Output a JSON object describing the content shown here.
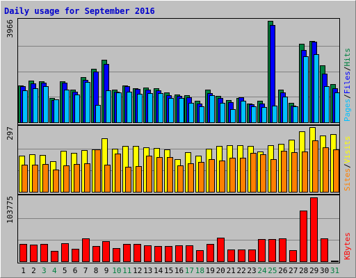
{
  "chart_data": {
    "title": "Daily usage for September 2016",
    "colors": {
      "frame_bg": "#C0C0C0",
      "title": "#0000CC",
      "hits": "#008040",
      "files": "#0000FF",
      "pages": "#00C0FF",
      "visits": "#FFFF00",
      "sites": "#FF8000",
      "kbytes": "#FF0000",
      "weekend_label": "#008040",
      "grid": "#808080",
      "text": "#000000"
    },
    "days": [
      "1",
      "2",
      "3",
      "4",
      "5",
      "6",
      "7",
      "8",
      "9",
      "10",
      "11",
      "12",
      "13",
      "14",
      "15",
      "16",
      "17",
      "18",
      "19",
      "20",
      "21",
      "22",
      "23",
      "24",
      "25",
      "26",
      "27",
      "28",
      "29",
      "30",
      "31"
    ],
    "weekend_days": [
      3,
      4,
      10,
      11,
      17,
      18,
      24,
      25,
      31
    ],
    "panels": [
      {
        "type": "bar",
        "max_label": "3966",
        "ylim": [
          0,
          3966
        ],
        "legend": [
          "Pages",
          "/",
          "Files",
          "/",
          "Hits"
        ],
        "series": [
          {
            "name": "Hits",
            "values": [
              1425,
              1615,
              1590,
              950,
              1590,
              1255,
              1745,
              2090,
              2425,
              1270,
              1430,
              1335,
              1345,
              1325,
              1155,
              1090,
              1050,
              830,
              1275,
              1025,
              870,
              940,
              740,
              840,
              3946,
              1280,
              760,
              3046,
              3166,
              2206,
              1485
            ]
          },
          {
            "name": "Files",
            "values": [
              1410,
              1510,
              1535,
              865,
              1535,
              1175,
              1655,
              1970,
              2270,
              1185,
              1405,
              1295,
              1270,
              1250,
              1065,
              1035,
              965,
              740,
              1125,
              945,
              790,
              960,
              690,
              740,
              3788,
              1150,
              660,
              2810,
              3126,
              1900,
              1325
            ]
          },
          {
            "name": "Pages",
            "values": [
              1245,
              1335,
              1395,
              880,
              1275,
              1075,
              1555,
              680,
              1230,
              1150,
              1175,
              1105,
              1135,
              1145,
              955,
              945,
              750,
              620,
              1045,
              765,
              510,
              830,
              620,
              600,
              660,
              1000,
              620,
              2570,
              2640,
              1400,
              1155
            ]
          }
        ]
      },
      {
        "type": "bar",
        "max_label": "297",
        "ylim": [
          0,
          297
        ],
        "legend": [
          "Sites",
          "/",
          "Visits"
        ],
        "series": [
          {
            "name": "Visits",
            "values": [
              167,
              172,
              170,
              140,
              188,
              178,
              192,
              196,
              246,
              197,
              211,
              212,
              204,
              200,
              196,
              151,
              183,
              165,
              198,
              212,
              213,
              213,
              211,
              186,
              213,
              219,
              238,
              279,
              297,
              259,
              266
            ]
          },
          {
            "name": "Sites",
            "values": [
              126,
              124,
              129,
              102,
              120,
              127,
              130,
              196,
              126,
              177,
              116,
              117,
              166,
              160,
              160,
              121,
              132,
              136,
              149,
              145,
              158,
              158,
              178,
              174,
              151,
              187,
              182,
              186,
              235,
              203,
              195
            ]
          }
        ]
      },
      {
        "type": "bar",
        "max_label": "103775",
        "ylim": [
          0,
          103775
        ],
        "legend": [
          "KBytes"
        ],
        "series": [
          {
            "name": "KBytes",
            "values": [
              27500,
              27200,
              27500,
              16500,
              29200,
              20000,
              37100,
              24600,
              32500,
              20800,
              27500,
              27500,
              25300,
              24400,
              24400,
              25300,
              25700,
              17800,
              27500,
              37600,
              18700,
              18600,
              18700,
              35600,
              35600,
              37100,
              17900,
              81200,
              102300,
              37100,
              10
            ]
          }
        ]
      }
    ]
  }
}
